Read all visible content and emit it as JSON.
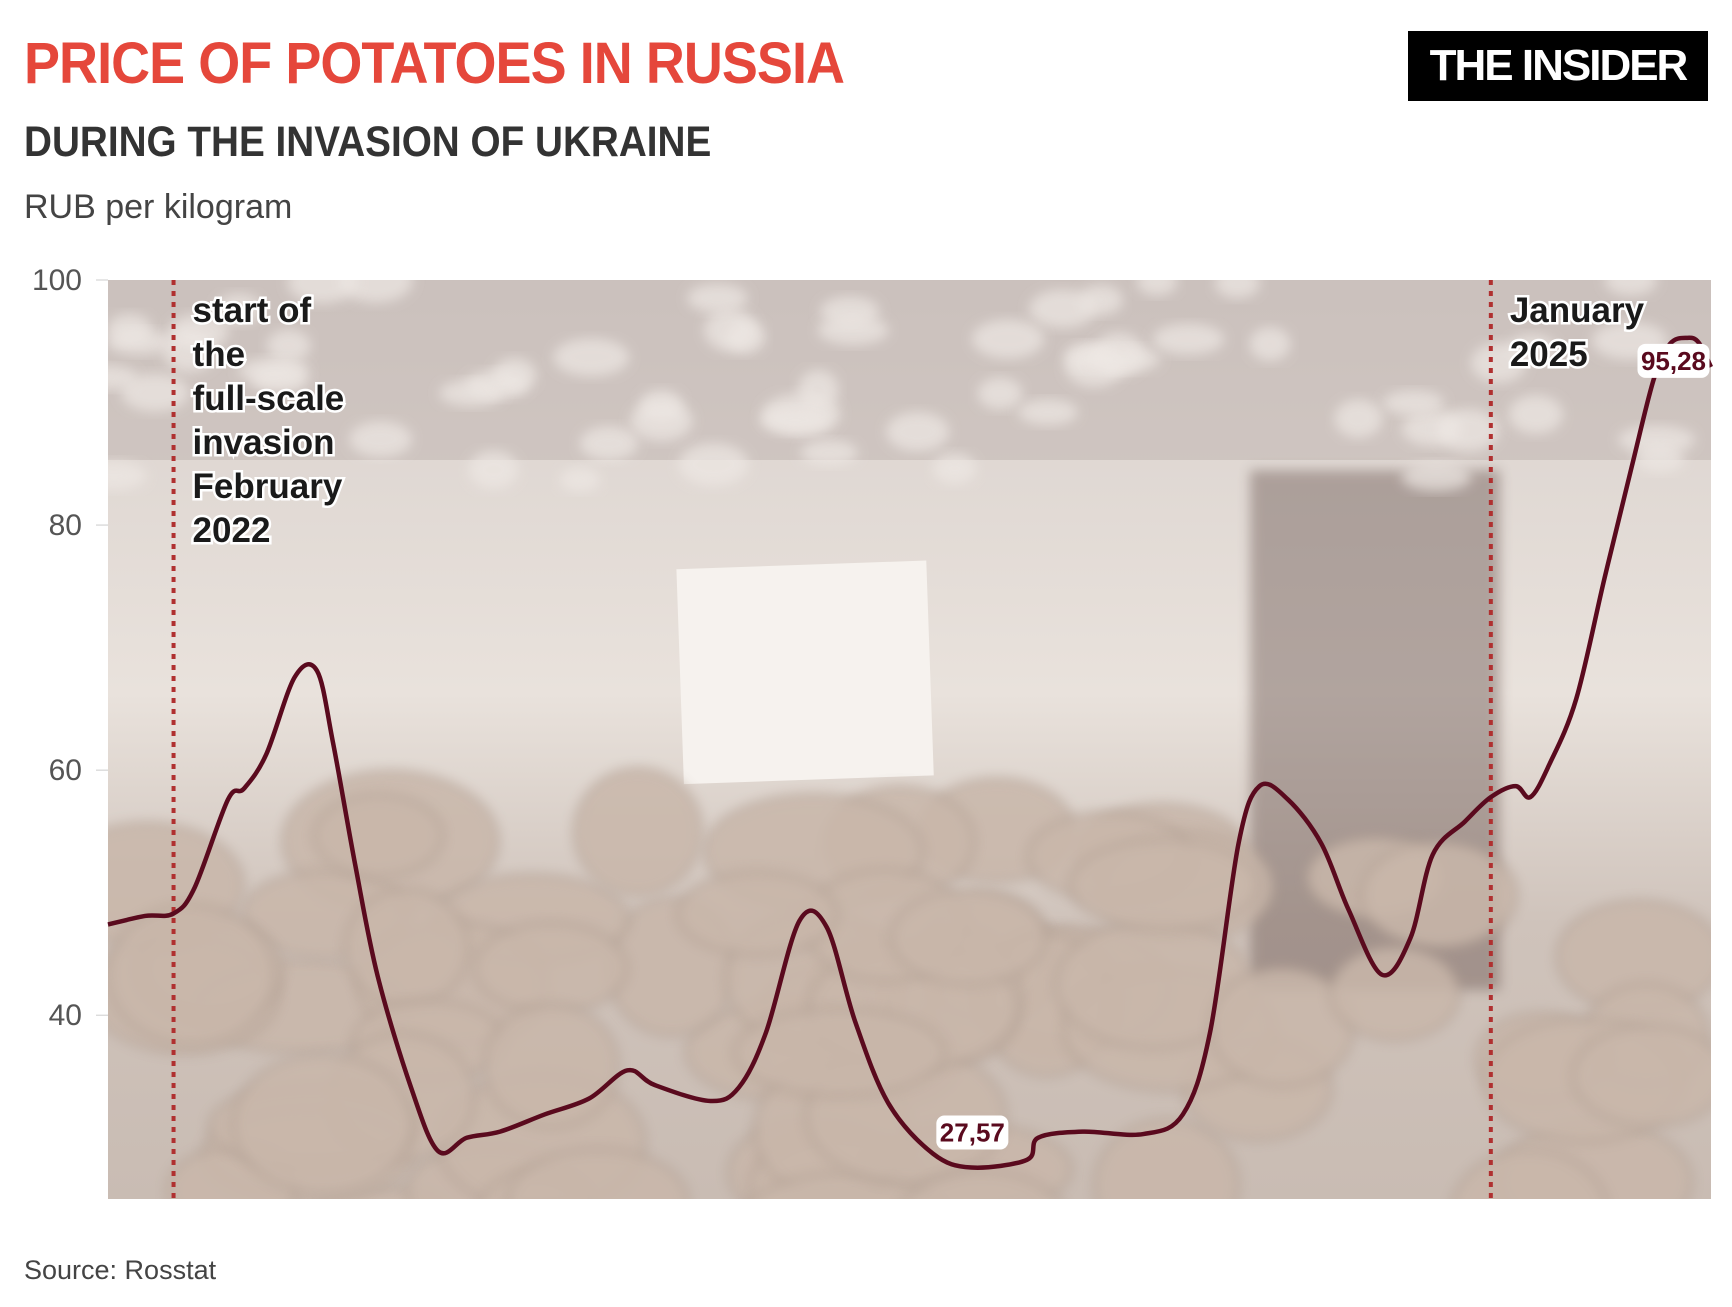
{
  "header": {
    "title": "PRICE OF POTATOES IN RUSSIA",
    "subtitle": "DURING THE INVASION OF UKRAINE",
    "unit": "RUB per kilogram",
    "logo": "THE INSIDER"
  },
  "footer": {
    "source": "Source: Rosstat"
  },
  "colors": {
    "title": "#e5473b",
    "line": "#5a0a1e",
    "marker_lines": "#b03030",
    "background_photo_tint": "#d9cfc9"
  },
  "chart_data": {
    "type": "line",
    "title": "PRICE OF POTATOES IN RUSSIA",
    "subtitle": "DURING THE INVASION OF UKRAINE",
    "ylabel": "RUB per kilogram",
    "xlabel": "",
    "ylim": [
      25,
      100
    ],
    "xlim": [
      "2021-12-10",
      "2025-06-28"
    ],
    "yticks": [
      40,
      60,
      80,
      100
    ],
    "grid": false,
    "background": "photo of potatoes at a market stall",
    "x": [
      "2021-12-10",
      "2022-01-09",
      "2022-02-01",
      "2022-02-18",
      "2022-03-17",
      "2022-03-30",
      "2022-04-17",
      "2022-05-10",
      "2022-05-28",
      "2022-06-10",
      "2022-06-28",
      "2022-07-16",
      "2022-08-12",
      "2022-09-03",
      "2022-09-26",
      "2022-10-23",
      "2022-11-28",
      "2023-01-03",
      "2023-02-03",
      "2023-02-25",
      "2023-04-11",
      "2023-05-04",
      "2023-05-26",
      "2023-06-22",
      "2023-07-14",
      "2023-08-06",
      "2023-09-02",
      "2023-10-08",
      "2023-11-08",
      "2023-12-23",
      "2024-01-01",
      "2024-02-06",
      "2024-03-26",
      "2024-04-27",
      "2024-05-19",
      "2024-06-11",
      "2024-06-28",
      "2024-07-21",
      "2024-08-17",
      "2024-09-08",
      "2024-10-05",
      "2024-10-28",
      "2024-11-15",
      "2024-12-11",
      "2025-01-01",
      "2025-01-21",
      "2025-02-02",
      "2025-02-17",
      "2025-03-11",
      "2025-04-03",
      "2025-04-25",
      "2025-05-13",
      "2025-05-26",
      "2025-06-09",
      "2025-06-18",
      "2025-06-28"
    ],
    "values": [
      47.4,
      48.1,
      48.3,
      50.4,
      57.6,
      58.5,
      61.3,
      67.6,
      68.1,
      62.2,
      52.2,
      43.2,
      34.1,
      28.9,
      30.0,
      30.5,
      31.9,
      33.2,
      35.5,
      34.3,
      33.0,
      34.1,
      38.6,
      47.7,
      47.2,
      39.5,
      32.8,
      28.7,
      27.57,
      28.2,
      30.0,
      30.5,
      30.3,
      31.9,
      38.6,
      54.0,
      58.7,
      57.6,
      54.0,
      48.6,
      43.3,
      46.3,
      53.1,
      55.8,
      57.8,
      58.7,
      57.8,
      60.4,
      65.8,
      75.7,
      84.8,
      92.0,
      94.8,
      95.28,
      94.9,
      92.9
    ],
    "data_labels": [
      {
        "x": "2023-11-08",
        "text": "27,57"
      },
      {
        "x": "2025-06-09",
        "text": "95,28"
      }
    ],
    "annotations": [
      {
        "x": "2022-02-01",
        "lines": [
          "start of",
          "the",
          "full-scale",
          "invasion",
          "February",
          "2022"
        ]
      },
      {
        "x": "2025-01-01",
        "lines": [
          "January",
          "2025"
        ]
      }
    ]
  }
}
